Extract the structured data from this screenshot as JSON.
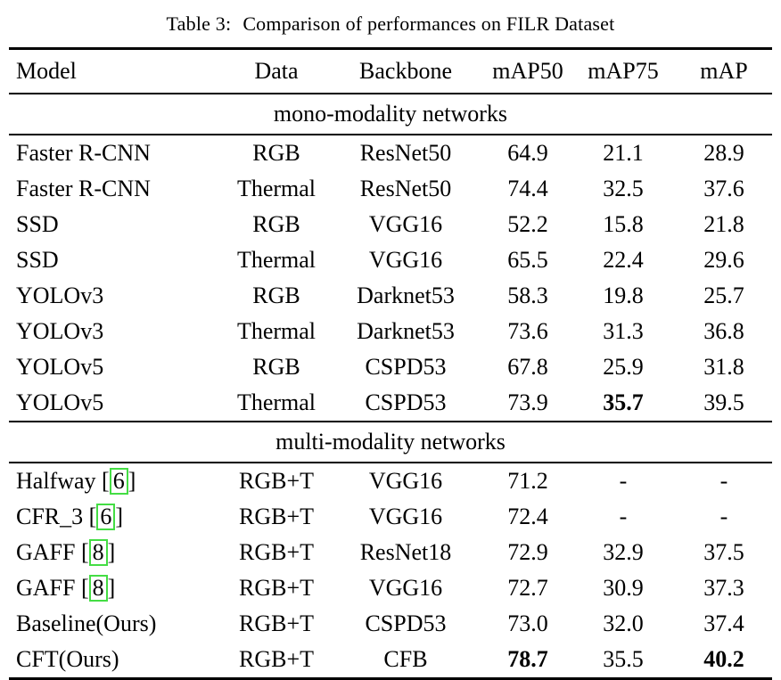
{
  "caption": {
    "label": "Table 3:",
    "text": "Comparison of performances on FILR Dataset"
  },
  "columns": [
    "Model",
    "Data",
    "Backbone",
    "mAP50",
    "mAP75",
    "mAP"
  ],
  "sections": [
    {
      "label": "mono-modality networks",
      "rows": [
        {
          "model": "Faster R-CNN",
          "cite": null,
          "data": "RGB",
          "backbone": "ResNet50",
          "map50": "64.9",
          "map75": "21.1",
          "map": "28.9",
          "bold": []
        },
        {
          "model": "Faster R-CNN",
          "cite": null,
          "data": "Thermal",
          "backbone": "ResNet50",
          "map50": "74.4",
          "map75": "32.5",
          "map": "37.6",
          "bold": []
        },
        {
          "model": "SSD",
          "cite": null,
          "data": "RGB",
          "backbone": "VGG16",
          "map50": "52.2",
          "map75": "15.8",
          "map": "21.8",
          "bold": []
        },
        {
          "model": "SSD",
          "cite": null,
          "data": "Thermal",
          "backbone": "VGG16",
          "map50": "65.5",
          "map75": "22.4",
          "map": "29.6",
          "bold": []
        },
        {
          "model": "YOLOv3",
          "cite": null,
          "data": "RGB",
          "backbone": "Darknet53",
          "map50": "58.3",
          "map75": "19.8",
          "map": "25.7",
          "bold": []
        },
        {
          "model": "YOLOv3",
          "cite": null,
          "data": "Thermal",
          "backbone": "Darknet53",
          "map50": "73.6",
          "map75": "31.3",
          "map": "36.8",
          "bold": []
        },
        {
          "model": "YOLOv5",
          "cite": null,
          "data": "RGB",
          "backbone": "CSPD53",
          "map50": "67.8",
          "map75": "25.9",
          "map": "31.8",
          "bold": []
        },
        {
          "model": "YOLOv5",
          "cite": null,
          "data": "Thermal",
          "backbone": "CSPD53",
          "map50": "73.9",
          "map75": "35.7",
          "map": "39.5",
          "bold": [
            "map75"
          ]
        }
      ]
    },
    {
      "label": "multi-modality networks",
      "rows": [
        {
          "model": "Halfway",
          "cite": "6",
          "data": "RGB+T",
          "backbone": "VGG16",
          "map50": "71.2",
          "map75": "-",
          "map": "-",
          "bold": []
        },
        {
          "model": "CFR_3",
          "cite": "6",
          "data": "RGB+T",
          "backbone": "VGG16",
          "map50": "72.4",
          "map75": "-",
          "map": "-",
          "bold": []
        },
        {
          "model": "GAFF",
          "cite": "8",
          "data": "RGB+T",
          "backbone": "ResNet18",
          "map50": "72.9",
          "map75": "32.9",
          "map": "37.5",
          "bold": []
        },
        {
          "model": "GAFF",
          "cite": "8",
          "data": "RGB+T",
          "backbone": "VGG16",
          "map50": "72.7",
          "map75": "30.9",
          "map": "37.3",
          "bold": []
        },
        {
          "model": "Baseline(Ours)",
          "cite": null,
          "data": "RGB+T",
          "backbone": "CSPD53",
          "map50": "73.0",
          "map75": "32.0",
          "map": "37.4",
          "bold": []
        },
        {
          "model": "CFT(Ours)",
          "cite": null,
          "data": "RGB+T",
          "backbone": "CFB",
          "map50": "78.7",
          "map75": "35.5",
          "map": "40.2",
          "bold": [
            "map50",
            "map"
          ]
        }
      ]
    }
  ],
  "colors": {
    "citation_box": "#44dd44",
    "text": "#000000",
    "rule": "#000000",
    "background": "#ffffff"
  }
}
